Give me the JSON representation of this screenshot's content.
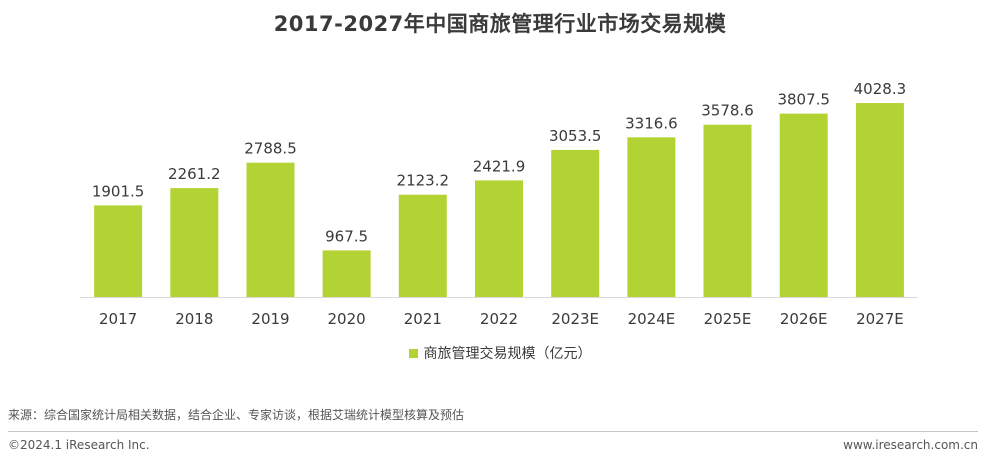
{
  "chart_data": {
    "type": "bar",
    "title": "2017-2027年中国商旅管理行业市场交易规模",
    "categories": [
      "2017",
      "2018",
      "2019",
      "2020",
      "2021",
      "2022",
      "2023E",
      "2024E",
      "2025E",
      "2026E",
      "2027E"
    ],
    "series": [
      {
        "name": "商旅管理交易规模（亿元）",
        "values": [
          1901.5,
          2261.2,
          2788.5,
          967.5,
          2123.2,
          2421.9,
          3053.5,
          3316.6,
          3578.6,
          3807.5,
          4028.3
        ],
        "labels": [
          "1901.5",
          "2261.2",
          "2788.5",
          "967.5",
          "2123.2",
          "2421.9",
          "3053.5",
          "3316.6",
          "3578.6",
          "3807.5",
          "4028.3"
        ],
        "color": "#b3d334"
      }
    ],
    "xlabel": "",
    "ylabel": "",
    "ylim": [
      0,
      4028.3
    ],
    "grid": false,
    "legend": "bottom"
  },
  "footer": {
    "source": "来源：综合国家统计局相关数据，结合企业、专家访谈，根据艾瑞统计模型核算及预估",
    "copyright": "©2024.1 iResearch Inc.",
    "website": "www.iresearch.com.cn"
  }
}
